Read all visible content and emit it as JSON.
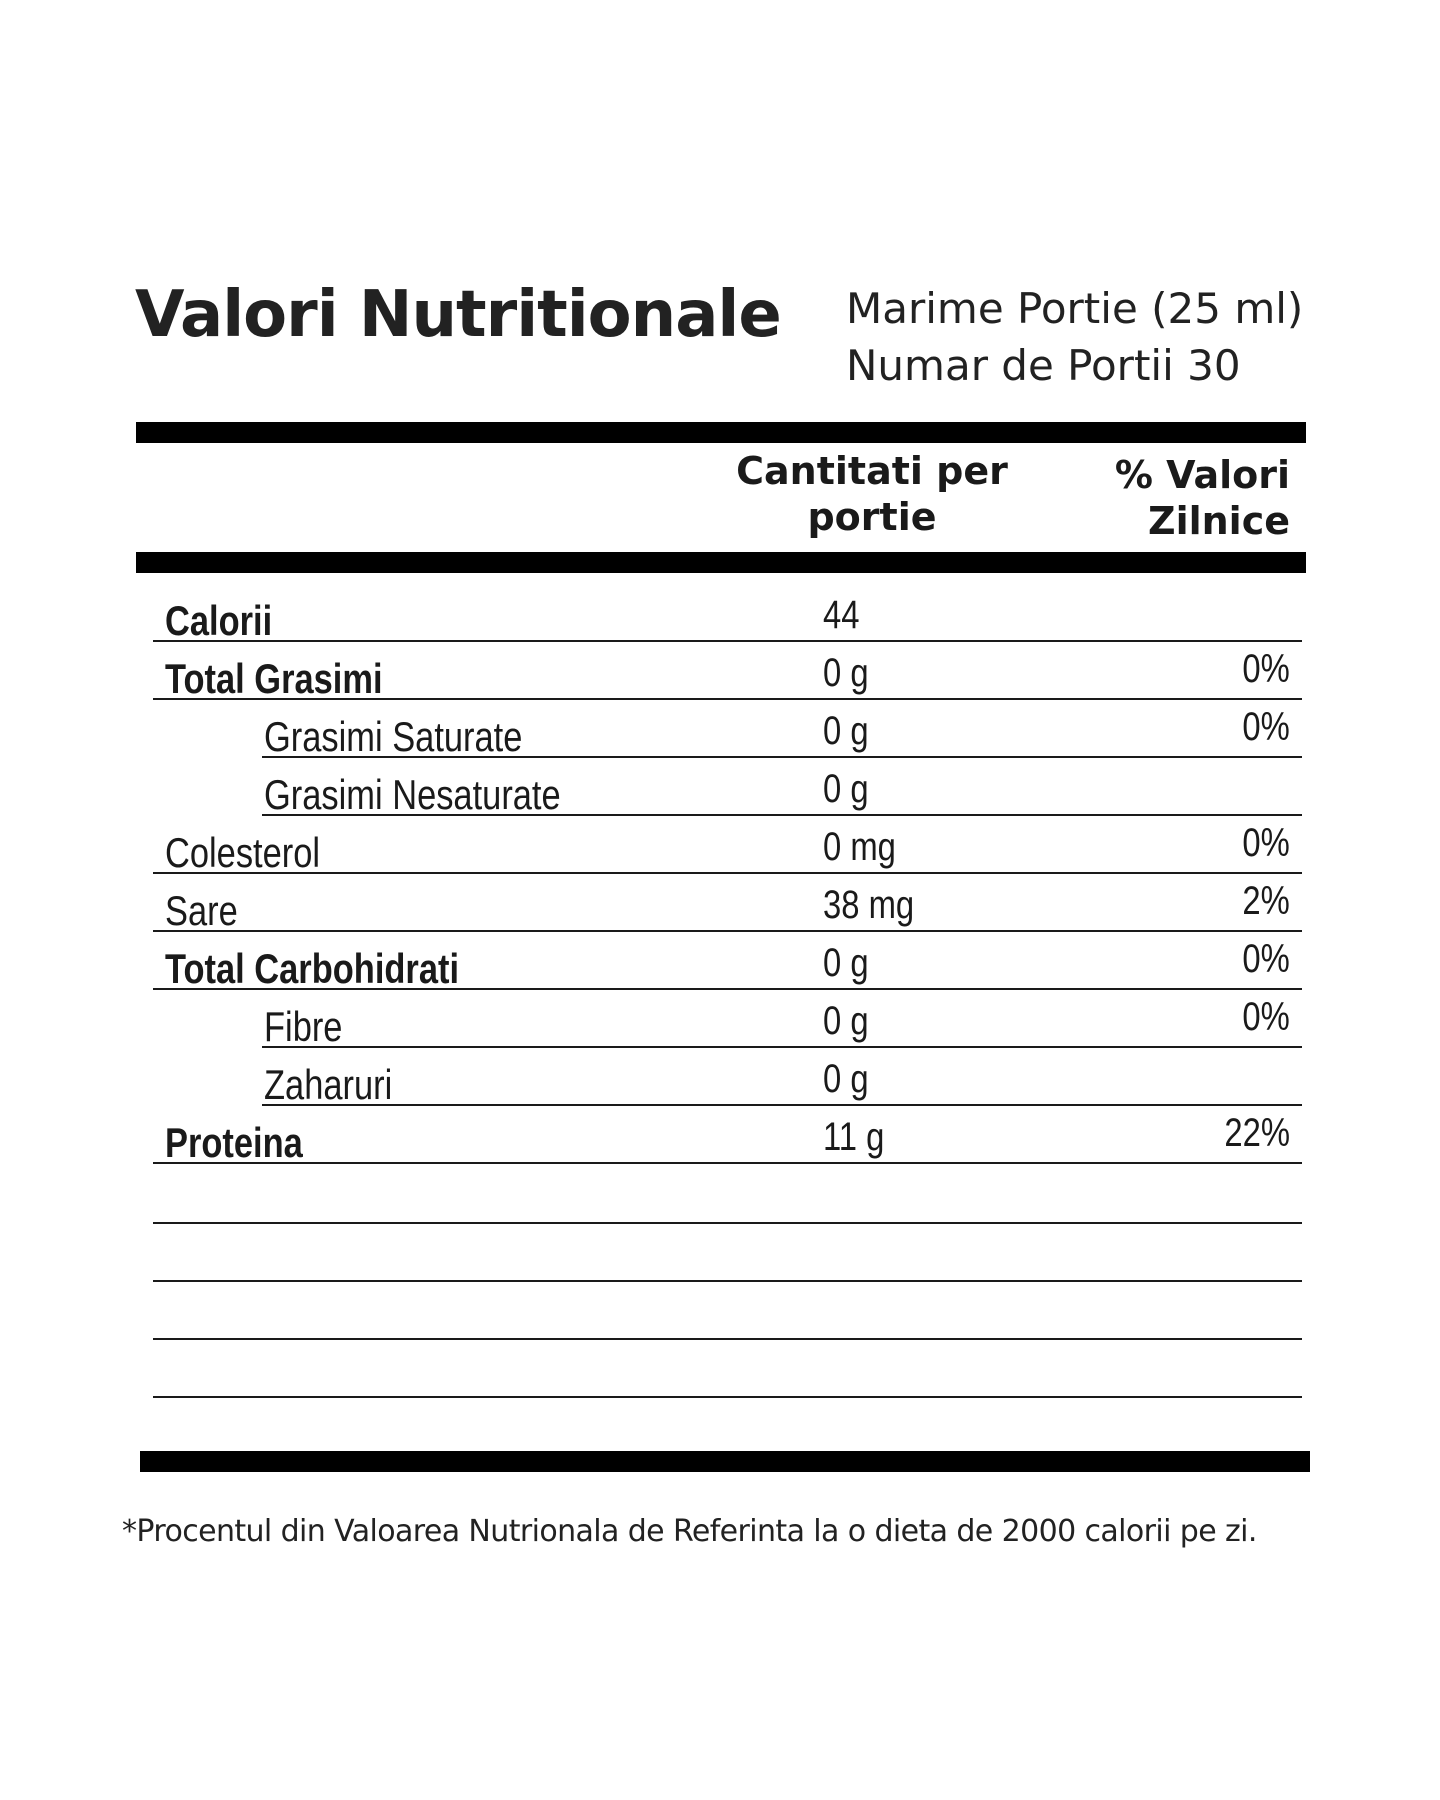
{
  "label": {
    "title": "Valori Nutritionale",
    "serving_size": "Marime Portie (25 ml)",
    "servings_count": "Numar de Portii 30",
    "header": {
      "amount_line1": "Cantitati per",
      "amount_line2": "portie",
      "dv_line1": "% Valori",
      "dv_line2": "Zilnice"
    },
    "rows": [
      {
        "name": "Calorii",
        "amount": "44",
        "dv": ""
      },
      {
        "name": "Total Grasimi",
        "amount": "0 g",
        "dv": "0%"
      },
      {
        "name": "Grasimi Saturate",
        "amount": "0 g",
        "dv": "0%"
      },
      {
        "name": "Grasimi Nesaturate",
        "amount": "0 g",
        "dv": ""
      },
      {
        "name": "Colesterol",
        "amount": "0 mg",
        "dv": "0%"
      },
      {
        "name": "Sare",
        "amount": "38 mg",
        "dv": "2%"
      },
      {
        "name": "Total Carbohidrati",
        "amount": "0 g",
        "dv": "0%"
      },
      {
        "name": "Fibre",
        "amount": "0 g",
        "dv": "0%"
      },
      {
        "name": "Zaharuri",
        "amount": "0 g",
        "dv": ""
      },
      {
        "name": "Proteina",
        "amount": "11 g",
        "dv": "22%"
      }
    ],
    "footnote": "*Procentul din Valoarea Nutrionala de Referinta la o dieta de 2000 calorii pe zi."
  }
}
